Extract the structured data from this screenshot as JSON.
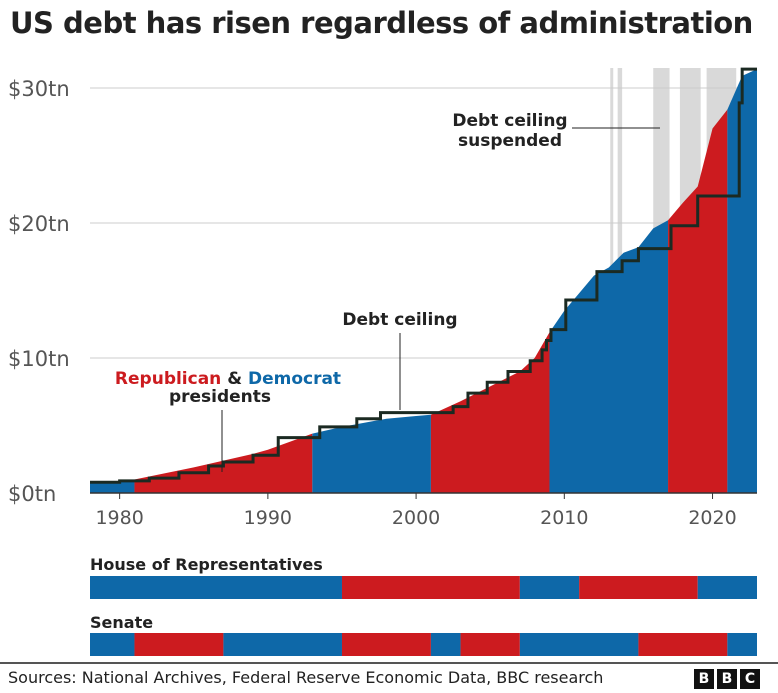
{
  "title": "US debt has risen regardless of administration",
  "source": "Sources: National Archives, Federal Reserve Economic Data, BBC research",
  "logo": "BBC",
  "colors": {
    "republican": "#cc1b1f",
    "democrat": "#0e68a8",
    "ceiling": "#1b2a22",
    "suspended": "#d9d9d9",
    "grid": "#cccccc"
  },
  "chart_data": {
    "type": "area",
    "title": "US debt has risen regardless of administration",
    "xlim": [
      1978,
      2023
    ],
    "ylim": [
      0,
      32
    ],
    "x_ticks": [
      1980,
      1990,
      2000,
      2010,
      2020
    ],
    "y_ticks": [
      {
        "value": 0,
        "label": "$0tn"
      },
      {
        "value": 10,
        "label": "$10tn"
      },
      {
        "value": 20,
        "label": "$20tn"
      },
      {
        "value": 30,
        "label": "$30tn"
      }
    ],
    "grid": true,
    "debt": {
      "x": [
        1978,
        1980,
        1981,
        1985,
        1989,
        1990,
        1993,
        1995,
        1998,
        2000,
        2001,
        2003,
        2005,
        2007,
        2008,
        2009,
        2010,
        2011,
        2012,
        2013,
        2014,
        2015,
        2016,
        2017,
        2018,
        2019,
        2020,
        2021,
        2022,
        2023
      ],
      "y": [
        0.77,
        0.9,
        1.0,
        1.9,
        2.9,
        3.2,
        4.4,
        4.9,
        5.5,
        5.7,
        5.8,
        6.8,
        7.9,
        9.0,
        10.0,
        11.9,
        13.5,
        14.8,
        16.1,
        16.7,
        17.8,
        18.2,
        19.6,
        20.2,
        21.5,
        22.7,
        27.0,
        28.4,
        30.9,
        31.4
      ]
    },
    "presidents": [
      {
        "party": "D",
        "from": 1978,
        "to": 1981
      },
      {
        "party": "R",
        "from": 1981,
        "to": 1993
      },
      {
        "party": "D",
        "from": 1993,
        "to": 2001
      },
      {
        "party": "R",
        "from": 2001,
        "to": 2009
      },
      {
        "party": "D",
        "from": 2009,
        "to": 2017
      },
      {
        "party": "R",
        "from": 2017,
        "to": 2021
      },
      {
        "party": "D",
        "from": 2021,
        "to": 2023
      }
    ],
    "debt_ceiling": {
      "x": [
        1978,
        1980,
        1982,
        1984,
        1986,
        1987,
        1989,
        1990.7,
        1993.5,
        1996,
        1997.6,
        2002.5,
        2003.5,
        2004.8,
        2006.2,
        2007.7,
        2008.5,
        2008.8,
        2009.1,
        2010.1,
        2012.2,
        2013.9,
        2015,
        2017.2,
        2019,
        2021.8,
        2022
      ],
      "y": [
        0.8,
        0.9,
        1.1,
        1.5,
        2.0,
        2.3,
        2.8,
        4.1,
        4.9,
        5.5,
        5.95,
        6.4,
        7.4,
        8.2,
        9.0,
        9.8,
        10.6,
        11.3,
        12.1,
        14.3,
        16.4,
        17.2,
        18.1,
        19.8,
        22.0,
        28.9,
        31.4
      ]
    },
    "suspended_periods": [
      [
        2013.1,
        2013.3
      ],
      [
        2013.6,
        2013.9
      ],
      [
        2016,
        2017.1
      ],
      [
        2017.8,
        2019.2
      ],
      [
        2019.6,
        2021.6
      ]
    ],
    "annotations": {
      "suspended": [
        "Debt ceiling",
        "suspended"
      ],
      "ceiling": "Debt ceiling",
      "parties": {
        "republican": "Republican",
        "amp": " & ",
        "democrat": "Democrat",
        "presidents": "presidents"
      }
    },
    "congress": [
      {
        "label": "House of Representatives",
        "segments": [
          {
            "party": "D",
            "from": 1978,
            "to": 1995
          },
          {
            "party": "R",
            "from": 1995,
            "to": 2007
          },
          {
            "party": "D",
            "from": 2007,
            "to": 2011
          },
          {
            "party": "R",
            "from": 2011,
            "to": 2019
          },
          {
            "party": "D",
            "from": 2019,
            "to": 2023
          }
        ]
      },
      {
        "label": "Senate",
        "segments": [
          {
            "party": "D",
            "from": 1978,
            "to": 1981
          },
          {
            "party": "R",
            "from": 1981,
            "to": 1987
          },
          {
            "party": "D",
            "from": 1987,
            "to": 1995
          },
          {
            "party": "R",
            "from": 1995,
            "to": 2001
          },
          {
            "party": "D",
            "from": 2001,
            "to": 2003
          },
          {
            "party": "R",
            "from": 2003,
            "to": 2007
          },
          {
            "party": "D",
            "from": 2007,
            "to": 2015
          },
          {
            "party": "R",
            "from": 2015,
            "to": 2021
          },
          {
            "party": "D",
            "from": 2021,
            "to": 2023
          }
        ]
      }
    ]
  }
}
